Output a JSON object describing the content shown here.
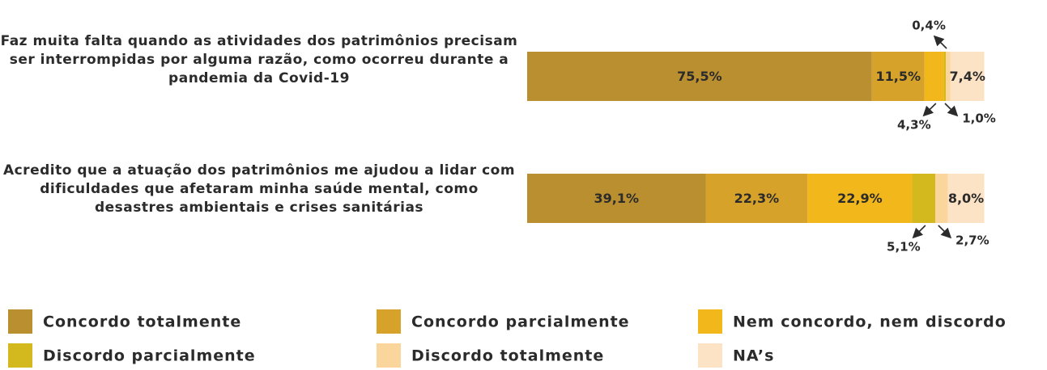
{
  "chart_data": {
    "type": "stacked-bar-horizontal",
    "categories": [
      "Faz muita falta quando as atividades dos patrimônios precisam ser interrompidas por alguma razão, como ocorreu durante a pandemia da Covid-19",
      "Acredito que a atuação dos patrimônios me ajudou a lidar com dificuldades que afetaram minha saúde mental, como desastres ambientais e crises sanitárias"
    ],
    "xlim": [
      0,
      100
    ],
    "series": [
      {
        "name": "Concordo totalmente",
        "color": "#b98f30",
        "values": [
          75.5,
          39.1
        ],
        "value_labels": [
          "75,5%",
          "39,1%"
        ]
      },
      {
        "name": "Concordo parcialmente",
        "color": "#d6a22a",
        "values": [
          11.5,
          22.3
        ],
        "value_labels": [
          "11,5%",
          "22,3%"
        ]
      },
      {
        "name": "Nem concordo, nem discordo",
        "color": "#f2b71a",
        "values": [
          4.3,
          22.9
        ],
        "value_labels": [
          "4,3%",
          "22,9%"
        ]
      },
      {
        "name": "Discordo parcialmente",
        "color": "#d4b91e",
        "values": [
          0.4,
          5.1
        ],
        "value_labels": [
          "0,4%",
          "5,1%"
        ]
      },
      {
        "name": "Discordo totalmente",
        "color": "#fbd69c",
        "values": [
          1.0,
          2.7
        ],
        "value_labels": [
          "1,0%",
          "2,7%"
        ]
      },
      {
        "name": "NA’s",
        "color": "#fde3c6",
        "values": [
          7.4,
          8.0
        ],
        "value_labels": [
          "7,4%",
          "8,0%"
        ]
      }
    ]
  }
}
